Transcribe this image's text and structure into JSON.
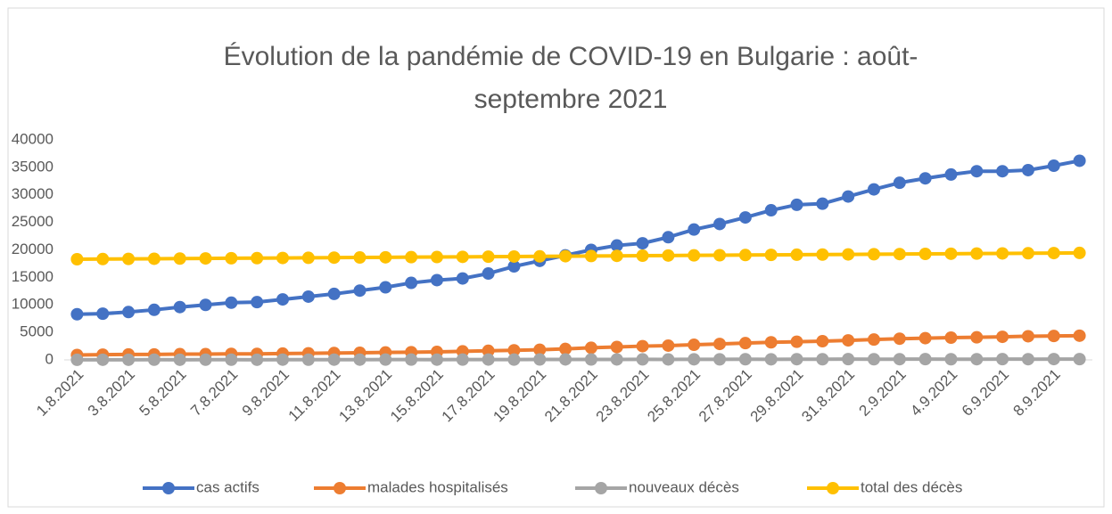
{
  "chart_data": {
    "type": "line",
    "title": "Évolution  de la pandémie de COVID-19 en Bulgarie : août-septembre 2021",
    "categories": [
      "1.8.2021",
      null,
      "3.8.2021",
      null,
      "5.8.2021",
      null,
      "7.8.2021",
      null,
      "9.8.2021",
      null,
      "11.8.2021",
      null,
      "13.8.2021",
      null,
      "15.8.2021",
      null,
      "17.8.2021",
      null,
      "19.8.2021",
      null,
      "21.8.2021",
      null,
      "23.8.2021",
      null,
      "25.8.2021",
      null,
      "27.8.2021",
      null,
      "29.8.2021",
      null,
      "31.8.2021",
      null,
      "2.9.2021",
      null,
      "4.9.2021",
      null,
      "6.9.2021",
      null,
      "8.9.2021",
      null
    ],
    "series": [
      {
        "name": "cas actifs",
        "color": "#4472c4",
        "values": [
          8300,
          8400,
          8700,
          9100,
          9600,
          10000,
          10400,
          10500,
          11000,
          11500,
          12000,
          12600,
          13200,
          14000,
          14500,
          14800,
          15700,
          17000,
          18000,
          19000,
          20000,
          20800,
          21200,
          22300,
          23700,
          24700,
          25900,
          27200,
          28200,
          28400,
          29700,
          31000,
          32200,
          33000,
          33700,
          34300,
          34300,
          34500,
          35300,
          36200
        ]
      },
      {
        "name": "malades hospitalisés",
        "color": "#ed7d31",
        "values": [
          900,
          950,
          1000,
          1000,
          1050,
          1050,
          1100,
          1100,
          1150,
          1200,
          1250,
          1300,
          1350,
          1400,
          1450,
          1550,
          1650,
          1750,
          1850,
          2000,
          2200,
          2350,
          2500,
          2600,
          2750,
          2900,
          3050,
          3200,
          3300,
          3400,
          3550,
          3700,
          3850,
          3950,
          4050,
          4100,
          4200,
          4300,
          4350,
          4400
        ]
      },
      {
        "name": "nouveaux décès",
        "color": "#a5a5a5",
        "values": [
          20,
          30,
          30,
          40,
          30,
          40,
          40,
          30,
          50,
          40,
          50,
          50,
          60,
          60,
          50,
          60,
          70,
          60,
          80,
          90,
          80,
          90,
          100,
          90,
          110,
          100,
          120,
          110,
          130,
          120,
          140,
          120,
          130,
          140,
          120,
          130,
          140,
          130,
          150,
          140
        ]
      },
      {
        "name": "total des décès",
        "color": "#ffc000",
        "values": [
          18300,
          18330,
          18360,
          18390,
          18420,
          18450,
          18480,
          18500,
          18530,
          18560,
          18590,
          18620,
          18650,
          18680,
          18700,
          18730,
          18760,
          18790,
          18820,
          18850,
          18880,
          18910,
          18940,
          18970,
          19000,
          19030,
          19060,
          19090,
          19120,
          19150,
          19180,
          19210,
          19240,
          19270,
          19300,
          19330,
          19360,
          19390,
          19420,
          19450
        ]
      }
    ],
    "ylim": [
      0,
      40000
    ],
    "yticks": [
      0,
      5000,
      10000,
      15000,
      20000,
      25000,
      30000,
      35000,
      40000
    ],
    "grid": false
  }
}
